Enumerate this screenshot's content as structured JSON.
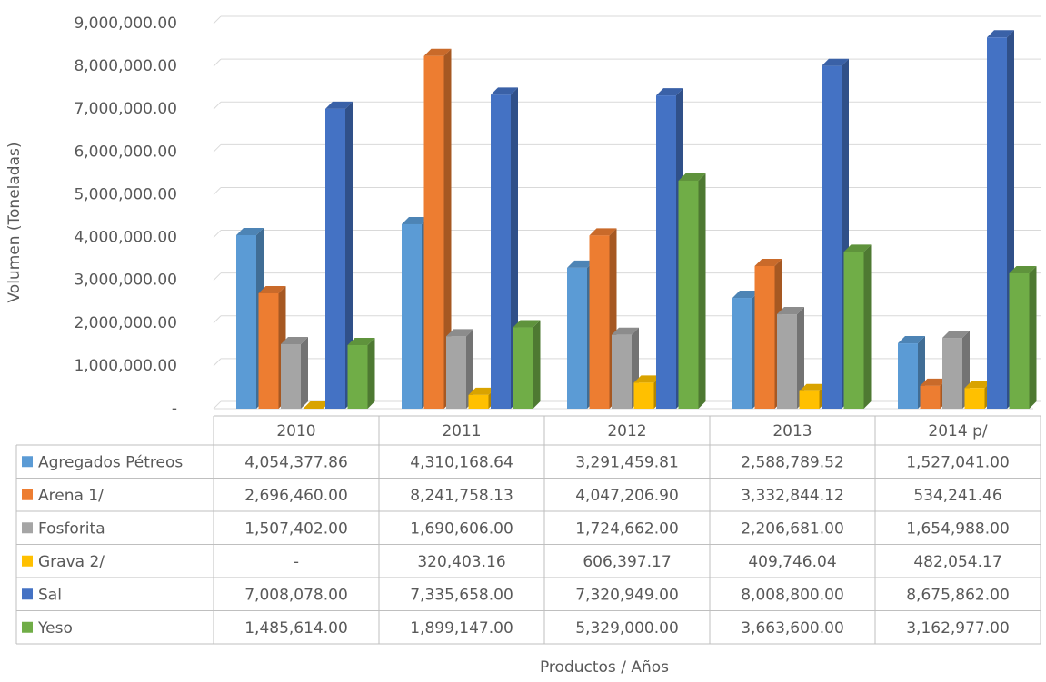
{
  "chart_data": {
    "type": "bar3d",
    "y_label": "Volumen (Toneladas)",
    "x_label": "Productos / Años",
    "categories": [
      "2010",
      "2011",
      "2012",
      "2013",
      "2014 p/"
    ],
    "series": [
      {
        "name": "Agregados Pétreos",
        "color": "#5b9bd5",
        "values": [
          4054377.86,
          4310168.64,
          3291459.81,
          2588789.52,
          1527041.0
        ],
        "value_labels": [
          "4,054,377.86",
          "4,310,168.64",
          "3,291,459.81",
          "2,588,789.52",
          "1,527,041.00"
        ]
      },
      {
        "name": "Arena 1/",
        "color": "#ed7d31",
        "values": [
          2696460.0,
          8241758.13,
          4047206.9,
          3332844.12,
          534241.46
        ],
        "value_labels": [
          "2,696,460.00",
          "8,241,758.13",
          "4,047,206.90",
          "3,332,844.12",
          "534,241.46"
        ]
      },
      {
        "name": "Fosforita",
        "color": "#a5a5a5",
        "values": [
          1507402.0,
          1690606.0,
          1724662.0,
          2206681.0,
          1654988.0
        ],
        "value_labels": [
          "1,507,402.00",
          "1,690,606.00",
          "1,724,662.00",
          "2,206,681.00",
          "1,654,988.00"
        ]
      },
      {
        "name": "Grava 2/",
        "color": "#ffc000",
        "values": [
          0,
          320403.16,
          606397.17,
          409746.04,
          482054.17
        ],
        "value_labels": [
          "-",
          "320,403.16",
          "606,397.17",
          "409,746.04",
          "482,054.17"
        ]
      },
      {
        "name": "Sal",
        "color": "#4472c4",
        "values": [
          7008078.0,
          7335658.0,
          7320949.0,
          8008800.0,
          8675862.0
        ],
        "value_labels": [
          "7,008,078.00",
          "7,335,658.00",
          "7,320,949.00",
          "8,008,800.00",
          "8,675,862.00"
        ]
      },
      {
        "name": "Yeso",
        "color": "#70ad47",
        "values": [
          1485614.0,
          1899147.0,
          5329000.0,
          3663600.0,
          3162977.0
        ],
        "value_labels": [
          "1,485,614.00",
          "1,899,147.00",
          "5,329,000.00",
          "3,663,600.00",
          "3,162,977.00"
        ]
      }
    ],
    "ylim": [
      0,
      9000000
    ],
    "yticks": [
      {
        "value": 0,
        "label": "-"
      },
      {
        "value": 1000000,
        "label": "1,000,000.00"
      },
      {
        "value": 2000000,
        "label": "2,000,000.00"
      },
      {
        "value": 3000000,
        "label": "3,000,000.00"
      },
      {
        "value": 4000000,
        "label": "4,000,000.00"
      },
      {
        "value": 5000000,
        "label": "5,000,000.00"
      },
      {
        "value": 6000000,
        "label": "6,000,000.00"
      },
      {
        "value": 7000000,
        "label": "7,000,000.00"
      },
      {
        "value": 8000000,
        "label": "8,000,000.00"
      },
      {
        "value": 9000000,
        "label": "9,000,000.00"
      }
    ],
    "grid": true
  }
}
